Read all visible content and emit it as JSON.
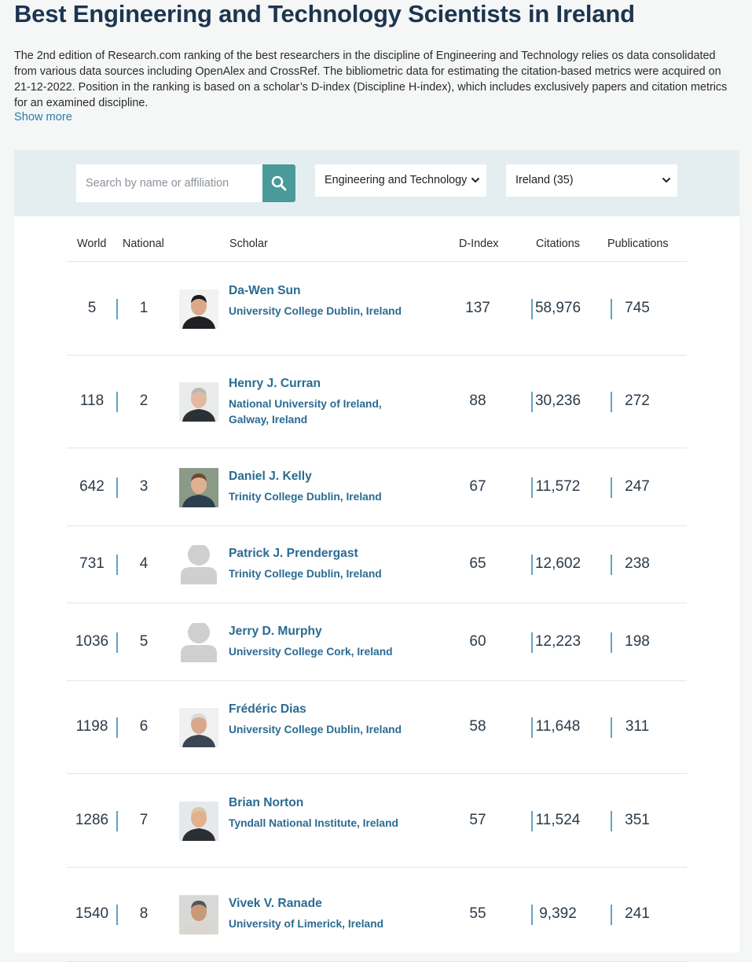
{
  "page": {
    "title": "Best Engineering and Technology Scientists in Ireland",
    "intro": "The 2nd edition of Research.com ranking of the best researchers in the discipline of Engineering and Technology relies os data consolidated from various data sources including OpenAlex and CrossRef. The bibliometric data for estimating the citation-based metrics were acquired on 21-12-2022. Position in the ranking is based on a scholar’s D-index (Discipline H-index), which includes exclusively papers and citation metrics for an examined discipline.",
    "show_more": "Show more"
  },
  "filters": {
    "search_placeholder": "Search by name or affiliation",
    "search_icon": "search-icon",
    "discipline": "Engineering and Technology",
    "country": "Ireland (35)",
    "accent_color": "#4a9a9a"
  },
  "table": {
    "headers": {
      "world": "World",
      "national": "National",
      "scholar": "Scholar",
      "dindex": "D-Index",
      "citations": "Citations",
      "publications": "Publications"
    },
    "rows": [
      {
        "world": "5",
        "national": "1",
        "name": "Da-Wen Sun",
        "affiliation": "University College Dublin, Ireland",
        "dindex": "137",
        "citations": "58,976",
        "publications": "745",
        "photo": "portrait"
      },
      {
        "world": "118",
        "national": "2",
        "name": "Henry J. Curran",
        "affiliation": "National University of Ireland, Galway, Ireland",
        "dindex": "88",
        "citations": "30,236",
        "publications": "272",
        "photo": "portrait"
      },
      {
        "world": "642",
        "national": "3",
        "name": "Daniel J. Kelly",
        "affiliation": "Trinity College Dublin, Ireland",
        "dindex": "67",
        "citations": "11,572",
        "publications": "247",
        "photo": "portrait"
      },
      {
        "world": "731",
        "national": "4",
        "name": "Patrick J. Prendergast",
        "affiliation": "Trinity College Dublin, Ireland",
        "dindex": "65",
        "citations": "12,602",
        "publications": "238",
        "photo": "placeholder"
      },
      {
        "world": "1036",
        "national": "5",
        "name": "Jerry D. Murphy",
        "affiliation": "University College Cork, Ireland",
        "dindex": "60",
        "citations": "12,223",
        "publications": "198",
        "photo": "placeholder"
      },
      {
        "world": "1198",
        "national": "6",
        "name": "Frédéric Dias",
        "affiliation": "University College Dublin, Ireland",
        "dindex": "58",
        "citations": "11,648",
        "publications": "311",
        "photo": "portrait"
      },
      {
        "world": "1286",
        "national": "7",
        "name": "Brian Norton",
        "affiliation": "Tyndall National Institute, Ireland",
        "dindex": "57",
        "citations": "11,524",
        "publications": "351",
        "photo": "portrait"
      },
      {
        "world": "1540",
        "national": "8",
        "name": "Vivek V. Ranade",
        "affiliation": "University of Limerick, Ireland",
        "dindex": "55",
        "citations": "9,392",
        "publications": "241",
        "photo": "portrait"
      }
    ]
  }
}
